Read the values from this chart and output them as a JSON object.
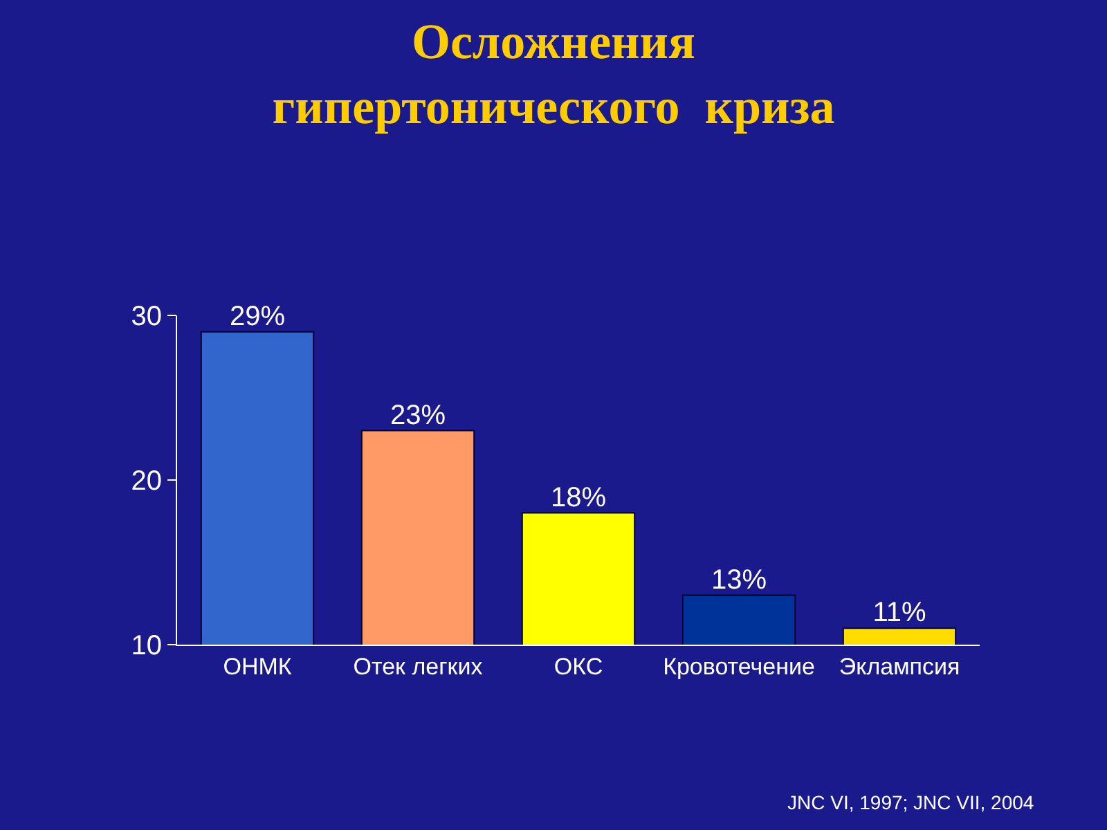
{
  "chart_data": {
    "type": "bar",
    "title": "Осложнения\nгипертонического  криза",
    "categories": [
      "ОНМК",
      "Отек легких",
      "ОКС",
      "Кровотечение",
      "Эклампсия"
    ],
    "values": [
      29,
      23,
      18,
      13,
      11
    ],
    "colors": [
      "#3366cc",
      "#ff9966",
      "#ffff00",
      "#003399",
      "#ffdd00"
    ],
    "value_labels": [
      "29%",
      "23%",
      "18%",
      "13%",
      "11%"
    ],
    "ylim": [
      10,
      30
    ],
    "yticks": [
      10,
      20,
      30
    ],
    "grid": false,
    "annotations": [
      "JNC VI, 1997; JNC VII, 2004"
    ]
  }
}
